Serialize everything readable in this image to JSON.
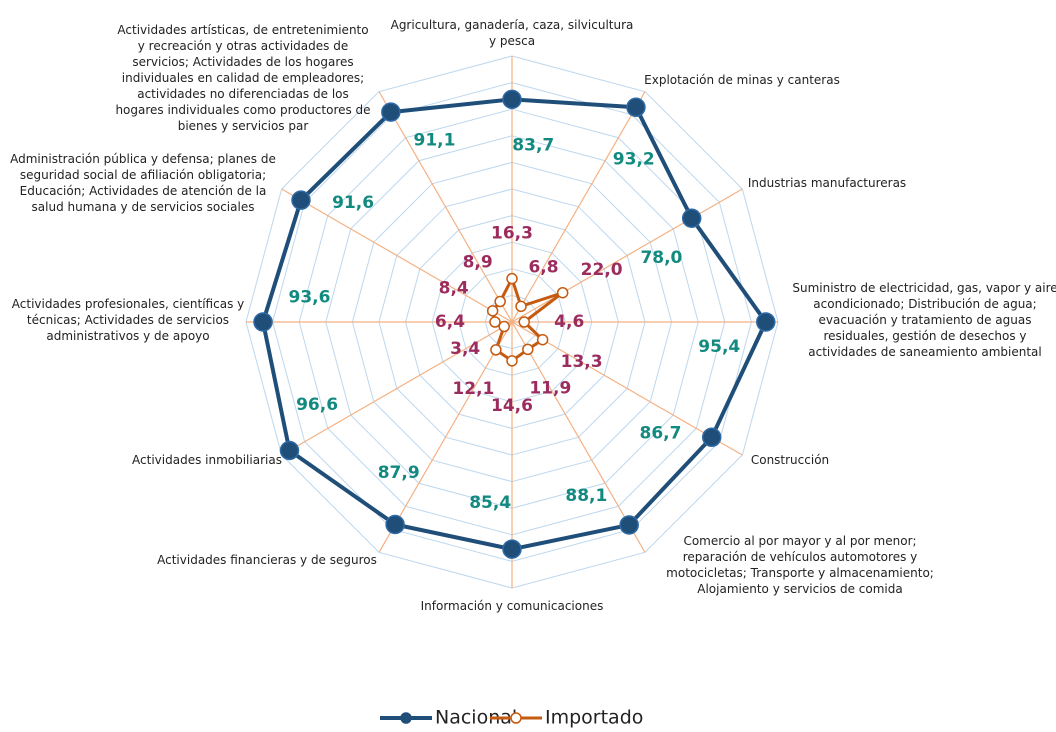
{
  "chart_data": {
    "type": "radar",
    "categories": [
      "Agricultura, ganadería, caza, silvicultura y pesca",
      "Explotación de minas y canteras",
      "Industrias manufactureras",
      "Suministro de electricidad, gas, vapor y aire acondicionado; Distribución de agua; evacuación y tratamiento de aguas residuales, gestión de desechos y actividades de saneamiento ambiental",
      "Construcción",
      "Comercio al por mayor y al por menor; reparación de vehículos automotores y motocicletas; Transporte y almacenamiento; Alojamiento y servicios de comida",
      "Información y comunicaciones",
      "Actividades financieras y de seguros",
      "Actividades inmobiliarias",
      "Actividades profesionales, científicas y técnicas; Actividades de servicios administrativos y de apoyo",
      "Administración pública y defensa; planes de seguridad social de afiliación obligatoria; Educación; Actividades de atención de la salud humana y de servicios sociales",
      "Actividades artísticas, de entretenimiento y recreación y otras actividades de servicios; Actividades de los hogares individuales en calidad de empleadores; actividades no diferenciadas de los hogares individuales como productores de bienes y servicios par"
    ],
    "series": [
      {
        "name": "Nacional",
        "color": "#1f4e79",
        "label_color": "#138a80",
        "values": [
          83.7,
          93.2,
          78.0,
          95.4,
          86.7,
          88.1,
          85.4,
          87.9,
          96.6,
          93.6,
          91.6,
          91.1
        ],
        "value_labels": [
          "83,7",
          "93,2",
          "78,0",
          "95,4",
          "86,7",
          "88,1",
          "85,4",
          "87,9",
          "96,6",
          "93,6",
          "91,6",
          "91,1"
        ]
      },
      {
        "name": "Importado",
        "color": "#c55a11",
        "label_color": "#9b2d5e",
        "values": [
          16.3,
          6.8,
          22.0,
          4.6,
          13.3,
          11.9,
          14.6,
          12.1,
          3.4,
          6.4,
          8.4,
          8.9
        ],
        "value_labels": [
          "16,3",
          "6,8",
          "22,0",
          "4,6",
          "13,3",
          "11,9",
          "14,6",
          "12,1",
          "3,4",
          "6,4",
          "8,4",
          "8,9"
        ]
      }
    ],
    "ylim": [
      0,
      100
    ],
    "yticks": [
      0,
      10,
      20,
      30,
      40,
      50,
      60,
      70,
      80,
      90,
      100
    ],
    "grid": true,
    "legend": "bottom"
  }
}
